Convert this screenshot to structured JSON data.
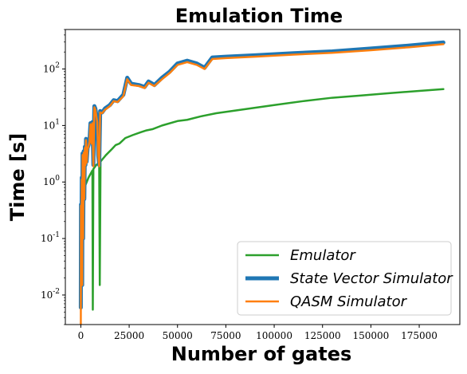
{
  "chart_data": {
    "type": "line",
    "title": "Emulation Time",
    "xlabel": "Number of gates",
    "ylabel": "Time [s]",
    "xlim": [
      -8000,
      196000
    ],
    "ylim": [
      0.003,
      500
    ],
    "yscale": "log",
    "grid": false,
    "legend_position": "lower-right",
    "xticks": [
      0,
      25000,
      50000,
      75000,
      100000,
      125000,
      150000,
      175000
    ],
    "yticks": [
      {
        "value": 0.01,
        "label": "10^-2"
      },
      {
        "value": 0.1,
        "label": "10^-1"
      },
      {
        "value": 1,
        "label": "10^0"
      },
      {
        "value": 10,
        "label": "10^1"
      },
      {
        "value": 100,
        "label": "10^2"
      }
    ],
    "series": [
      {
        "name": "Emulator",
        "color": "#2ca02c",
        "linewidth": 2.5,
        "points": [
          [
            100,
            0.02
          ],
          [
            300,
            0.15
          ],
          [
            600,
            0.4
          ],
          [
            1200,
            0.6
          ],
          [
            2500,
            0.9
          ],
          [
            4000,
            1.2
          ],
          [
            6000,
            1.6
          ],
          [
            6200,
            0.0055
          ],
          [
            6500,
            1.7
          ],
          [
            8000,
            2.0
          ],
          [
            9500,
            2.2
          ],
          [
            9800,
            0.015
          ],
          [
            10200,
            2.3
          ],
          [
            13000,
            3.0
          ],
          [
            16000,
            3.8
          ],
          [
            18000,
            4.5
          ],
          [
            20000,
            4.8
          ],
          [
            23000,
            6.0
          ],
          [
            27000,
            6.8
          ],
          [
            31000,
            7.6
          ],
          [
            34000,
            8.2
          ],
          [
            37000,
            8.6
          ],
          [
            42000,
            10.0
          ],
          [
            50000,
            12.0
          ],
          [
            55000,
            12.6
          ],
          [
            62000,
            14.5
          ],
          [
            70000,
            16.5
          ],
          [
            85000,
            19.5
          ],
          [
            100000,
            23.0
          ],
          [
            115000,
            27.0
          ],
          [
            130000,
            31.0
          ],
          [
            145000,
            34.0
          ],
          [
            160000,
            37.5
          ],
          [
            175000,
            41.0
          ],
          [
            187500,
            44.0
          ]
        ]
      },
      {
        "name": "State Vector Simulator",
        "color": "#1f77b4",
        "linewidth": 5,
        "points": [
          [
            0,
            0.006
          ],
          [
            100,
            0.4
          ],
          [
            300,
            0.05
          ],
          [
            500,
            1.2
          ],
          [
            700,
            0.015
          ],
          [
            900,
            3.2
          ],
          [
            1200,
            0.1
          ],
          [
            1500,
            3.5
          ],
          [
            1800,
            0.5
          ],
          [
            2100,
            4.2
          ],
          [
            2400,
            2.0
          ],
          [
            2700,
            5.8
          ],
          [
            3000,
            2.3
          ],
          [
            3500,
            4.0
          ],
          [
            4000,
            4.5
          ],
          [
            4500,
            5.5
          ],
          [
            5000,
            11.0
          ],
          [
            5500,
            5.0
          ],
          [
            6000,
            11.5
          ],
          [
            6500,
            2.0
          ],
          [
            7000,
            22.0
          ],
          [
            7500,
            20.0
          ],
          [
            8500,
            12.0
          ],
          [
            9000,
            3.0
          ],
          [
            9500,
            2.0
          ],
          [
            10000,
            18.0
          ],
          [
            11000,
            17.0
          ],
          [
            12500,
            20.0
          ],
          [
            15000,
            23.0
          ],
          [
            17000,
            28.0
          ],
          [
            19000,
            27.0
          ],
          [
            22000,
            35.0
          ],
          [
            24000,
            70.0
          ],
          [
            26000,
            55.0
          ],
          [
            30000,
            52.0
          ],
          [
            33000,
            48.0
          ],
          [
            35000,
            60.0
          ],
          [
            37000,
            55.0
          ],
          [
            38000,
            52.0
          ],
          [
            42000,
            70.0
          ],
          [
            46000,
            90.0
          ],
          [
            50000,
            125.0
          ],
          [
            55000,
            140.0
          ],
          [
            60000,
            125.0
          ],
          [
            64000,
            105.0
          ],
          [
            68000,
            160.0
          ],
          [
            75000,
            165.0
          ],
          [
            90000,
            175.0
          ],
          [
            110000,
            190.0
          ],
          [
            130000,
            205.0
          ],
          [
            150000,
            230.0
          ],
          [
            170000,
            260.0
          ],
          [
            187500,
            295.0
          ]
        ]
      },
      {
        "name": "QASM Simulator",
        "color": "#ff7f0e",
        "linewidth": 2.5,
        "points": [
          [
            0,
            0.003
          ],
          [
            100,
            0.38
          ],
          [
            300,
            0.05
          ],
          [
            500,
            1.1
          ],
          [
            700,
            0.015
          ],
          [
            900,
            3.0
          ],
          [
            1200,
            0.1
          ],
          [
            1500,
            3.3
          ],
          [
            1800,
            0.5
          ],
          [
            2100,
            4.0
          ],
          [
            2400,
            2.0
          ],
          [
            2700,
            5.5
          ],
          [
            3000,
            2.2
          ],
          [
            3500,
            3.8
          ],
          [
            4000,
            4.3
          ],
          [
            4500,
            5.2
          ],
          [
            5000,
            10.5
          ],
          [
            5500,
            4.8
          ],
          [
            6000,
            11.0
          ],
          [
            6500,
            1.9
          ],
          [
            7000,
            21.0
          ],
          [
            7500,
            19.0
          ],
          [
            8500,
            11.5
          ],
          [
            9000,
            2.9
          ],
          [
            9500,
            1.9
          ],
          [
            10000,
            17.0
          ],
          [
            11000,
            16.5
          ],
          [
            12500,
            19.0
          ],
          [
            15000,
            22.0
          ],
          [
            17000,
            27.0
          ],
          [
            19000,
            26.0
          ],
          [
            22000,
            33.0
          ],
          [
            24000,
            66.0
          ],
          [
            26000,
            52.0
          ],
          [
            30000,
            50.0
          ],
          [
            33000,
            46.0
          ],
          [
            35000,
            57.0
          ],
          [
            37000,
            52.0
          ],
          [
            38000,
            50.0
          ],
          [
            42000,
            66.0
          ],
          [
            46000,
            85.0
          ],
          [
            50000,
            118.0
          ],
          [
            55000,
            132.0
          ],
          [
            60000,
            118.0
          ],
          [
            64000,
            100.0
          ],
          [
            68000,
            150.0
          ],
          [
            75000,
            156.0
          ],
          [
            90000,
            165.0
          ],
          [
            110000,
            180.0
          ],
          [
            130000,
            193.0
          ],
          [
            150000,
            215.0
          ],
          [
            170000,
            243.0
          ],
          [
            187500,
            275.0
          ]
        ]
      }
    ]
  }
}
